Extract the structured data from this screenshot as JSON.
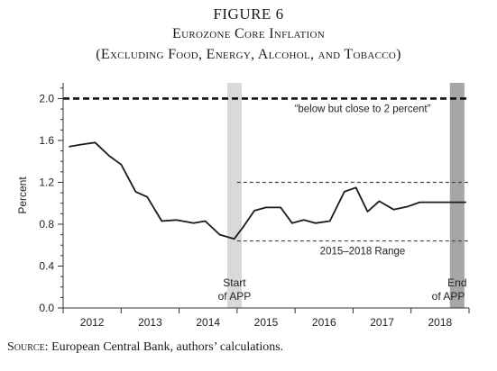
{
  "figure": {
    "number": "FIGURE 6",
    "title": "Eurozone Core Inflation",
    "subtitle": "(Excluding Food, Energy, Alcohol, and Tobacco)",
    "source_label": "Source:",
    "source_text": " European Central Bank, authors’ calculations."
  },
  "chart_data": {
    "type": "line",
    "ylabel": "Percent",
    "xlabel": "",
    "ylim": [
      0.0,
      2.15
    ],
    "xlim": [
      2011.5,
      2018.5
    ],
    "y_ticks": [
      "0.0",
      "0.4",
      "0.8",
      "1.2",
      "1.6",
      "2.0"
    ],
    "y_tick_values": [
      0.0,
      0.4,
      0.8,
      1.2,
      1.6,
      2.0
    ],
    "x_tick_labels": [
      "2012",
      "2013",
      "2014",
      "2015",
      "2016",
      "2017",
      "2018"
    ],
    "x_tick_positions": [
      2012,
      2013,
      2014,
      2015,
      2016,
      2017,
      2018
    ],
    "x_minor_ticks": [
      2011.5,
      2012.5,
      2013.5,
      2014.5,
      2015.5,
      2016.5,
      2017.5,
      2018.5
    ],
    "grid": false,
    "series": [
      {
        "x": [
          2011.6,
          2011.8,
          2012.05,
          2012.3,
          2012.5,
          2012.75,
          2012.95,
          2013.2,
          2013.45,
          2013.75,
          2013.95,
          2014.2,
          2014.45,
          2014.6,
          2014.8,
          2015.0,
          2015.25,
          2015.45,
          2015.65,
          2015.85,
          2016.1,
          2016.35,
          2016.55,
          2016.75,
          2016.95,
          2017.2,
          2017.45,
          2017.65,
          2017.95,
          2018.2,
          2018.45
        ],
        "y": [
          1.54,
          1.56,
          1.58,
          1.45,
          1.37,
          1.11,
          1.06,
          0.83,
          0.84,
          0.81,
          0.83,
          0.7,
          0.66,
          0.77,
          0.93,
          0.96,
          0.96,
          0.81,
          0.84,
          0.81,
          0.83,
          1.11,
          1.15,
          0.92,
          1.02,
          0.94,
          0.97,
          1.01,
          1.01,
          1.01,
          1.01
        ]
      }
    ],
    "target_line": {
      "value": 2.0,
      "label": "“below but close to 2 percent”"
    },
    "range": {
      "low": 0.64,
      "high": 1.2,
      "from": 2014.5,
      "label": "2015–2018 Range"
    },
    "markers": [
      {
        "from": 2014.33,
        "to": 2014.58,
        "label_line1": "Start",
        "label_line2": "of APP",
        "color": "#d9d9d9"
      },
      {
        "from": 2018.17,
        "to": 2018.42,
        "label_line1": "End",
        "label_line2": "of APP",
        "color": "#a6a6a6"
      }
    ],
    "colors": {
      "line": "#1a1a1a",
      "axis": "#333333"
    }
  }
}
